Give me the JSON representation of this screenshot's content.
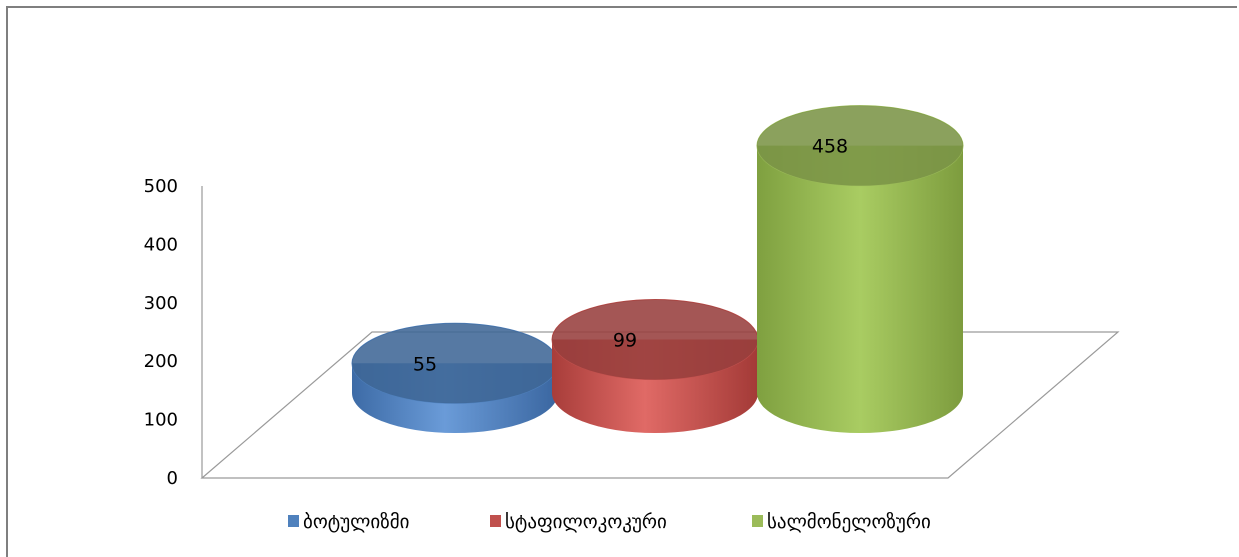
{
  "chart_data": {
    "type": "bar",
    "categories": [
      "ბოტულიზმი",
      "სტაფილოკოკური",
      "სალმონელოზური"
    ],
    "values": [
      55,
      99,
      458
    ],
    "ylim": [
      0,
      500
    ],
    "yticks": [
      0,
      100,
      200,
      300,
      400,
      500
    ],
    "legend": "bottom",
    "grid": false,
    "colors": {
      "ბოტულიზმი": "#4f81bd",
      "სტაფილოკოკური": "#c0504d",
      "სალმონელოზური": "#9bbb59"
    }
  }
}
